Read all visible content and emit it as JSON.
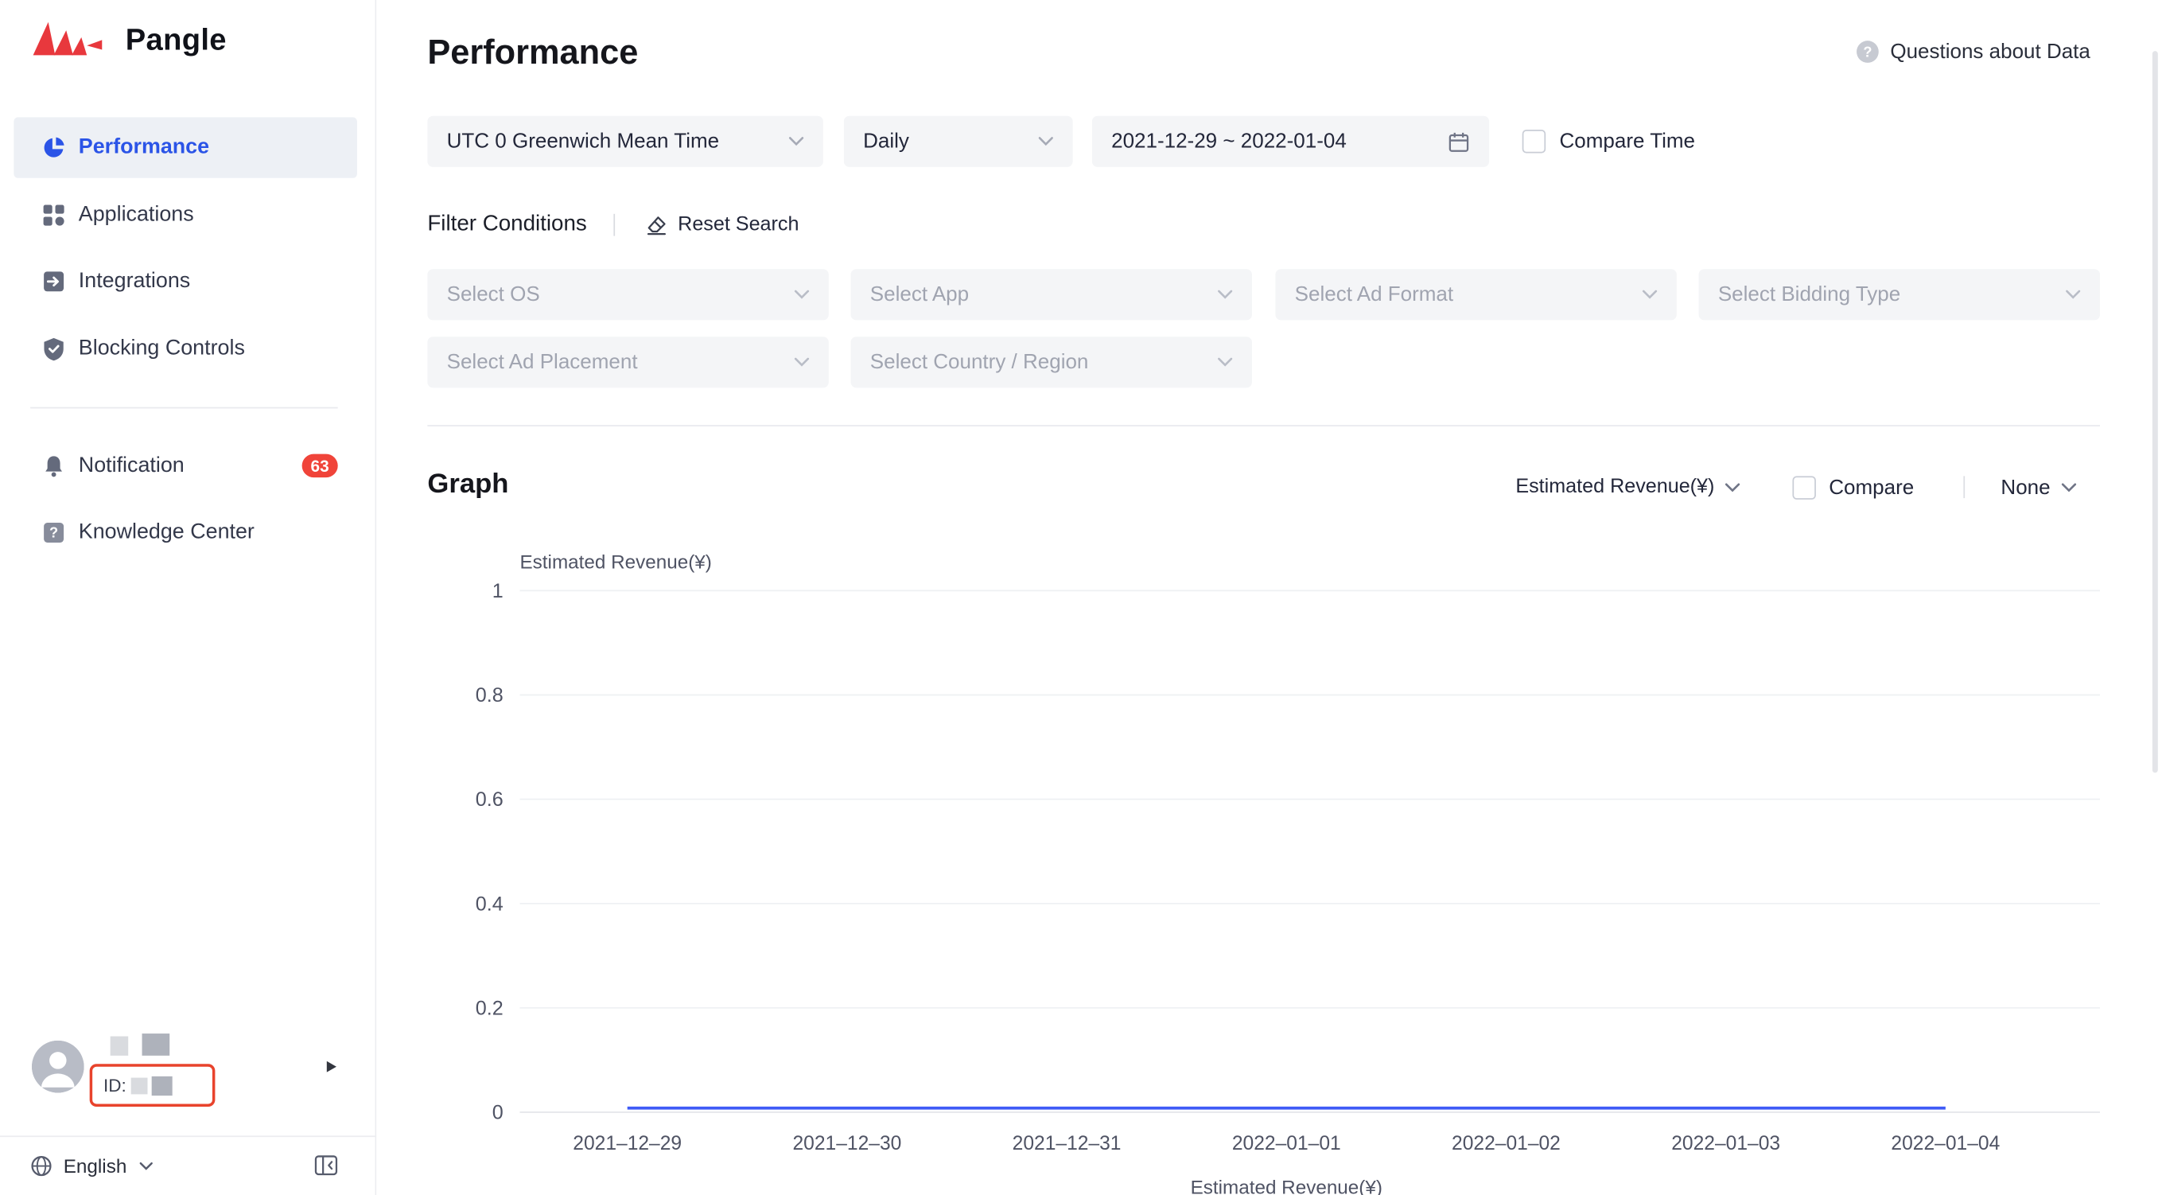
{
  "sidebar": {
    "brand": "Pangle",
    "items": [
      {
        "label": "Performance",
        "active": true
      },
      {
        "label": "Applications"
      },
      {
        "label": "Integrations"
      },
      {
        "label": "Blocking Controls"
      },
      {
        "label": "Notification",
        "badge": "63"
      },
      {
        "label": "Knowledge Center"
      }
    ],
    "account": {
      "id_label": "ID:"
    },
    "language": "English"
  },
  "header": {
    "title": "Performance",
    "help_link": "Questions about Data"
  },
  "filters": {
    "timezone": "UTC 0 Greenwich Mean Time",
    "granularity": "Daily",
    "date_range": "2021-12-29 ~ 2022-01-04",
    "compare_time_label": "Compare Time",
    "conditions_label": "Filter Conditions",
    "reset_label": "Reset Search",
    "selects": [
      "Select OS",
      "Select App",
      "Select Ad Format",
      "Select Bidding Type",
      "Select Ad Placement",
      "Select Country / Region"
    ]
  },
  "graph": {
    "title": "Graph",
    "metric": "Estimated Revenue(¥)",
    "compare_label": "Compare",
    "none_label": "None"
  },
  "chart_data": {
    "type": "line",
    "title": "",
    "xlabel": "",
    "ylabel": "Estimated Revenue(¥)",
    "x": [
      "2021–12–29",
      "2021–12–30",
      "2021–12–31",
      "2022–01–01",
      "2022–01–02",
      "2022–01–03",
      "2022–01–04"
    ],
    "series": [
      {
        "name": "Estimated Revenue(¥)",
        "values": [
          0,
          0,
          0,
          0,
          0,
          0,
          0
        ]
      }
    ],
    "ylim": [
      0,
      1
    ],
    "yticks": [
      0,
      0.2,
      0.4,
      0.6,
      0.8,
      1
    ],
    "grid": true,
    "legend_position": "bottom",
    "line_color": "#3F5BF6"
  },
  "colors": {
    "accent": "#2B54E7",
    "badge": "#F0443A",
    "annotation_box": "#E8432C",
    "placeholder_text": "#A0A4B0",
    "select_bg": "#F4F5F7"
  }
}
